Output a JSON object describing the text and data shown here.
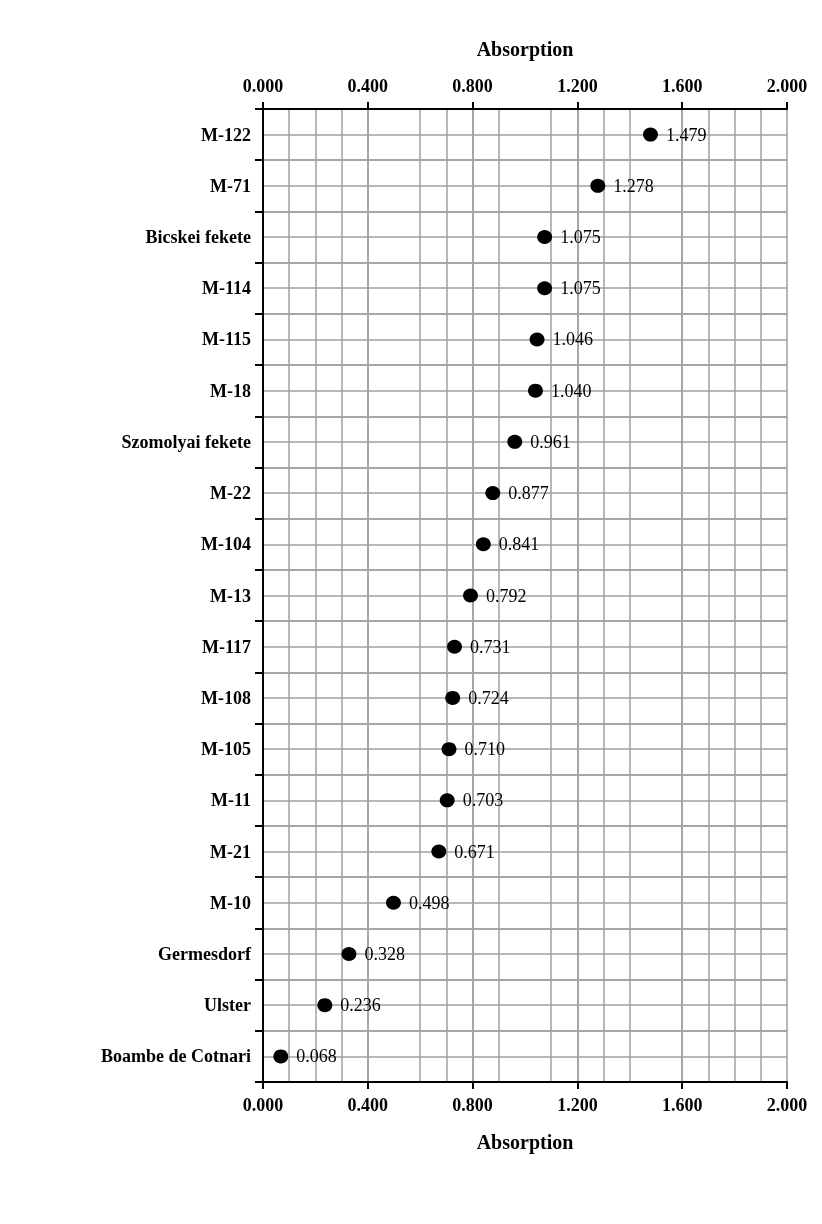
{
  "chart_data": {
    "type": "scatter",
    "orientation": "horizontal",
    "xlabel": "Absorption",
    "x2label": "Absorption",
    "categories": [
      "M-122",
      "M-71",
      "Bicskei fekete",
      "M-114",
      "M-115",
      "M-18",
      "Szomolyai fekete",
      "M-22",
      "M-104",
      "M-13",
      "M-117",
      "M-108",
      "M-105",
      "M-11",
      "M-21",
      "M-10",
      "Germesdorf",
      "Ulster",
      "Boambe de Cotnari"
    ],
    "series": [
      {
        "color": "#000000",
        "values": [
          1.479,
          1.278,
          1.075,
          1.075,
          1.046,
          1.04,
          0.961,
          0.877,
          0.841,
          0.792,
          0.731,
          0.724,
          0.71,
          0.703,
          0.671,
          0.498,
          0.328,
          0.236,
          0.068
        ],
        "value_labels": [
          "1.479",
          "1.278",
          "1.075",
          "1.075",
          "1.046",
          "1.040",
          "0.961",
          "0.877",
          "0.841",
          "0.792",
          "0.731",
          "0.724",
          "0.710",
          "0.703",
          "0.671",
          "0.498",
          "0.328",
          "0.236",
          "0.068"
        ]
      }
    ],
    "xlim": [
      0,
      2
    ],
    "xticks": [
      {
        "value": 0,
        "label": "0.000"
      },
      {
        "value": 0.4,
        "label": "0.400"
      },
      {
        "value": 0.8,
        "label": "0.800"
      },
      {
        "value": 1.2,
        "label": "1.200"
      },
      {
        "value": 1.6,
        "label": "1.600"
      },
      {
        "value": 2,
        "label": "2.000"
      }
    ],
    "x2lim": [
      0,
      2
    ],
    "x2ticks": [
      {
        "value": 0,
        "label": "0.000"
      },
      {
        "value": 0.4,
        "label": "0.400"
      },
      {
        "value": 0.8,
        "label": "0.800"
      },
      {
        "value": 1.2,
        "label": "1.200"
      },
      {
        "value": 1.6,
        "label": "1.600"
      },
      {
        "value": 2,
        "label": "2.000"
      }
    ],
    "grid": true,
    "marker": "circle"
  }
}
